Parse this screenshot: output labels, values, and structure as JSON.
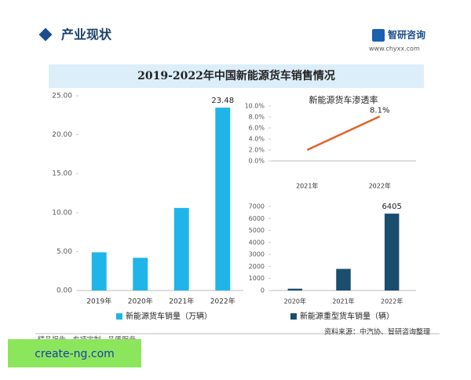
{
  "header": {
    "section": "产业现状",
    "brand": "智研咨询",
    "url": "www.chyxx.com"
  },
  "title": "2019-2022年中国新能源货车销售情况",
  "footer": {
    "slogan": "精品报告 · 专项定制 · 品质服务",
    "source": "资料来源：中汽协、智研咨询整理"
  },
  "watermark": "create-ng.com",
  "chart_data": [
    {
      "type": "bar",
      "categories": [
        "2019年",
        "2020年",
        "2021年",
        "2022年"
      ],
      "series": [
        {
          "name": "新能源货车销量（万辆）",
          "color": "#1fb5e8",
          "values": [
            4.9,
            4.2,
            10.6,
            23.48
          ]
        }
      ],
      "value_labels": [
        null,
        null,
        null,
        "23.48"
      ],
      "ylim": [
        0,
        25
      ],
      "yticks": [
        {
          "value": 0,
          "label": "0.00"
        },
        {
          "value": 5,
          "label": "5.00"
        },
        {
          "value": 10,
          "label": "10.00"
        },
        {
          "value": 15,
          "label": "15.00"
        },
        {
          "value": 20,
          "label": "20.00"
        },
        {
          "value": 25,
          "label": "25.00"
        }
      ]
    },
    {
      "type": "line",
      "title": "新能源货车渗透率",
      "categories": [
        "2021年",
        "2022年"
      ],
      "values": [
        2.0,
        8.1
      ],
      "color": "#e0622a",
      "value_labels": [
        null,
        "8.1%"
      ],
      "ylim": [
        0,
        10
      ],
      "yticks": [
        {
          "value": 0,
          "label": "0.0%"
        },
        {
          "value": 2,
          "label": "2.0%"
        },
        {
          "value": 4,
          "label": "4.0%"
        },
        {
          "value": 6,
          "label": "6.0%"
        },
        {
          "value": 8,
          "label": "8.0%"
        },
        {
          "value": 10,
          "label": "10.0%"
        }
      ]
    },
    {
      "type": "bar",
      "categories": [
        "2020年",
        "2021年",
        "2022年"
      ],
      "series": [
        {
          "name": "新能源重型货车销量（辆）",
          "color": "#1a4e6e",
          "values": [
            150,
            1800,
            6405
          ]
        }
      ],
      "value_labels": [
        null,
        null,
        "6405"
      ],
      "ylim": [
        0,
        7000
      ],
      "yticks": [
        0,
        1000,
        2000,
        3000,
        4000,
        5000,
        6000,
        7000
      ]
    }
  ]
}
